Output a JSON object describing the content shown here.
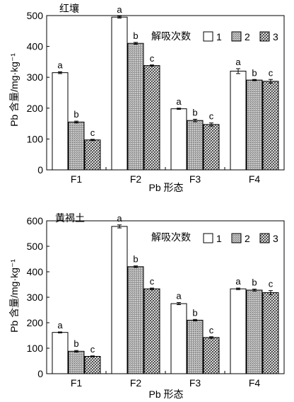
{
  "chart_data": [
    {
      "type": "bar",
      "title": "红壤",
      "xlabel": "Pb 形态",
      "ylabel": "Pb 含量/mg·kg⁻¹",
      "categories": [
        "F1",
        "F2",
        "F3",
        "F4"
      ],
      "ylim": [
        0,
        500
      ],
      "yticks": [
        0,
        100,
        200,
        300,
        400,
        500
      ],
      "legend_title": "解吸次数",
      "legend_position": "top-right",
      "series": [
        {
          "name": "1",
          "values": [
            315,
            495,
            198,
            320
          ],
          "errors": [
            3,
            3,
            2,
            8
          ],
          "letters": [
            "a",
            "a",
            "a",
            "a"
          ]
        },
        {
          "name": "2",
          "values": [
            155,
            410,
            160,
            291
          ],
          "errors": [
            3,
            3,
            4,
            2
          ],
          "letters": [
            "b",
            "b",
            "b",
            "b"
          ]
        },
        {
          "name": "3",
          "values": [
            97,
            338,
            147,
            287
          ],
          "errors": [
            2,
            2,
            5,
            6
          ],
          "letters": [
            "c",
            "c",
            "c",
            "c"
          ]
        }
      ]
    },
    {
      "type": "bar",
      "title": "黄褐土",
      "xlabel": "Pb 形态",
      "ylabel": "Pb 含量/mg·kg⁻¹",
      "categories": [
        "F1",
        "F2",
        "F3",
        "F4"
      ],
      "ylim": [
        0,
        600
      ],
      "yticks": [
        0,
        100,
        200,
        300,
        400,
        500,
        600
      ],
      "legend_title": "解吸次数",
      "legend_position": "top-right",
      "series": [
        {
          "name": "1",
          "values": [
            162,
            578,
            275,
            333
          ],
          "errors": [
            2,
            6,
            4,
            3
          ],
          "letters": [
            "a",
            "a",
            "a",
            "a"
          ]
        },
        {
          "name": "2",
          "values": [
            88,
            420,
            210,
            328
          ],
          "errors": [
            3,
            3,
            3,
            4
          ],
          "letters": [
            "b",
            "b",
            "b",
            "b"
          ]
        },
        {
          "name": "3",
          "values": [
            68,
            333,
            142,
            318
          ],
          "errors": [
            2,
            3,
            3,
            8
          ],
          "letters": [
            "c",
            "c",
            "c",
            "c"
          ]
        }
      ]
    }
  ]
}
